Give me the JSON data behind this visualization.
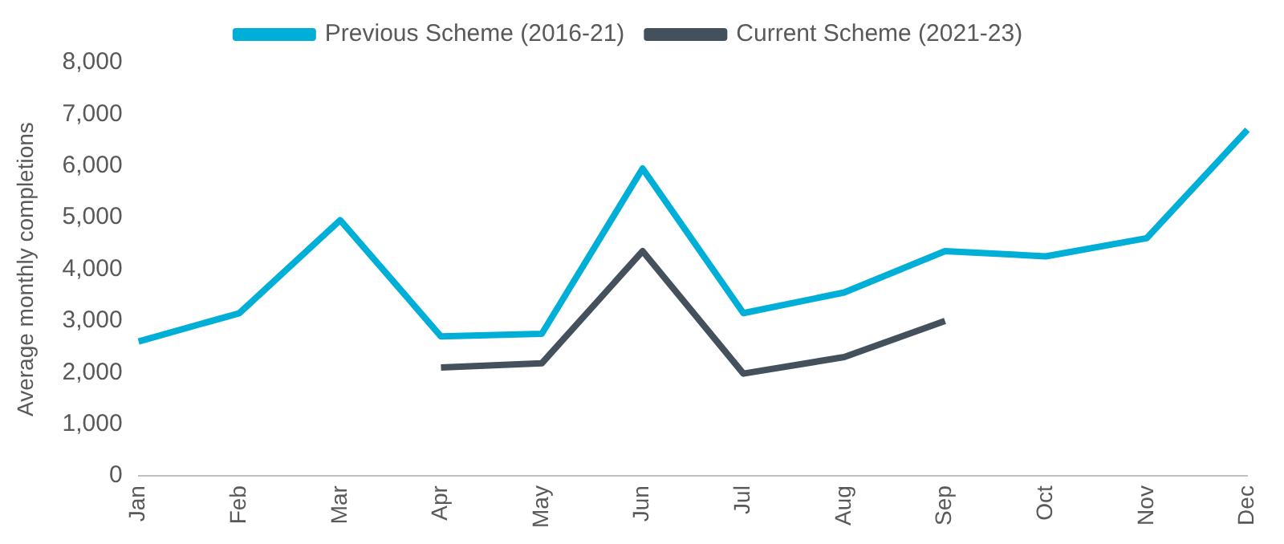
{
  "chart_data": {
    "type": "line",
    "ylabel": "Average monthly completions",
    "categories": [
      "Jan",
      "Feb",
      "Mar",
      "Apr",
      "May",
      "Jun",
      "Jul",
      "Aug",
      "Sep",
      "Oct",
      "Nov",
      "Dec"
    ],
    "series": [
      {
        "name": "Previous Scheme (2016-21)",
        "color": "#00afd7",
        "values": [
          2600,
          3150,
          4950,
          2700,
          2750,
          5950,
          3150,
          3550,
          4350,
          4250,
          4600,
          6700
        ]
      },
      {
        "name": "Current Scheme (2021-23)",
        "color": "#44505b",
        "values": [
          null,
          null,
          null,
          2100,
          2180,
          4350,
          1980,
          2300,
          3000,
          null,
          null,
          null
        ]
      }
    ],
    "ylim": [
      0,
      8000
    ],
    "yticks": [
      0,
      {
        "value": 1000,
        "label": "1,000"
      },
      {
        "value": 2000,
        "label": "2,000"
      },
      {
        "value": 3000,
        "label": "3,000"
      },
      {
        "value": 4000,
        "label": "4,000"
      },
      {
        "value": 5000,
        "label": "5,000"
      },
      {
        "value": 6000,
        "label": "6,000"
      },
      {
        "value": 7000,
        "label": "7,000"
      },
      {
        "value": 8000,
        "label": "8,000"
      }
    ],
    "grid": false,
    "legend": "top",
    "marker": "none",
    "line_style": "solid"
  }
}
